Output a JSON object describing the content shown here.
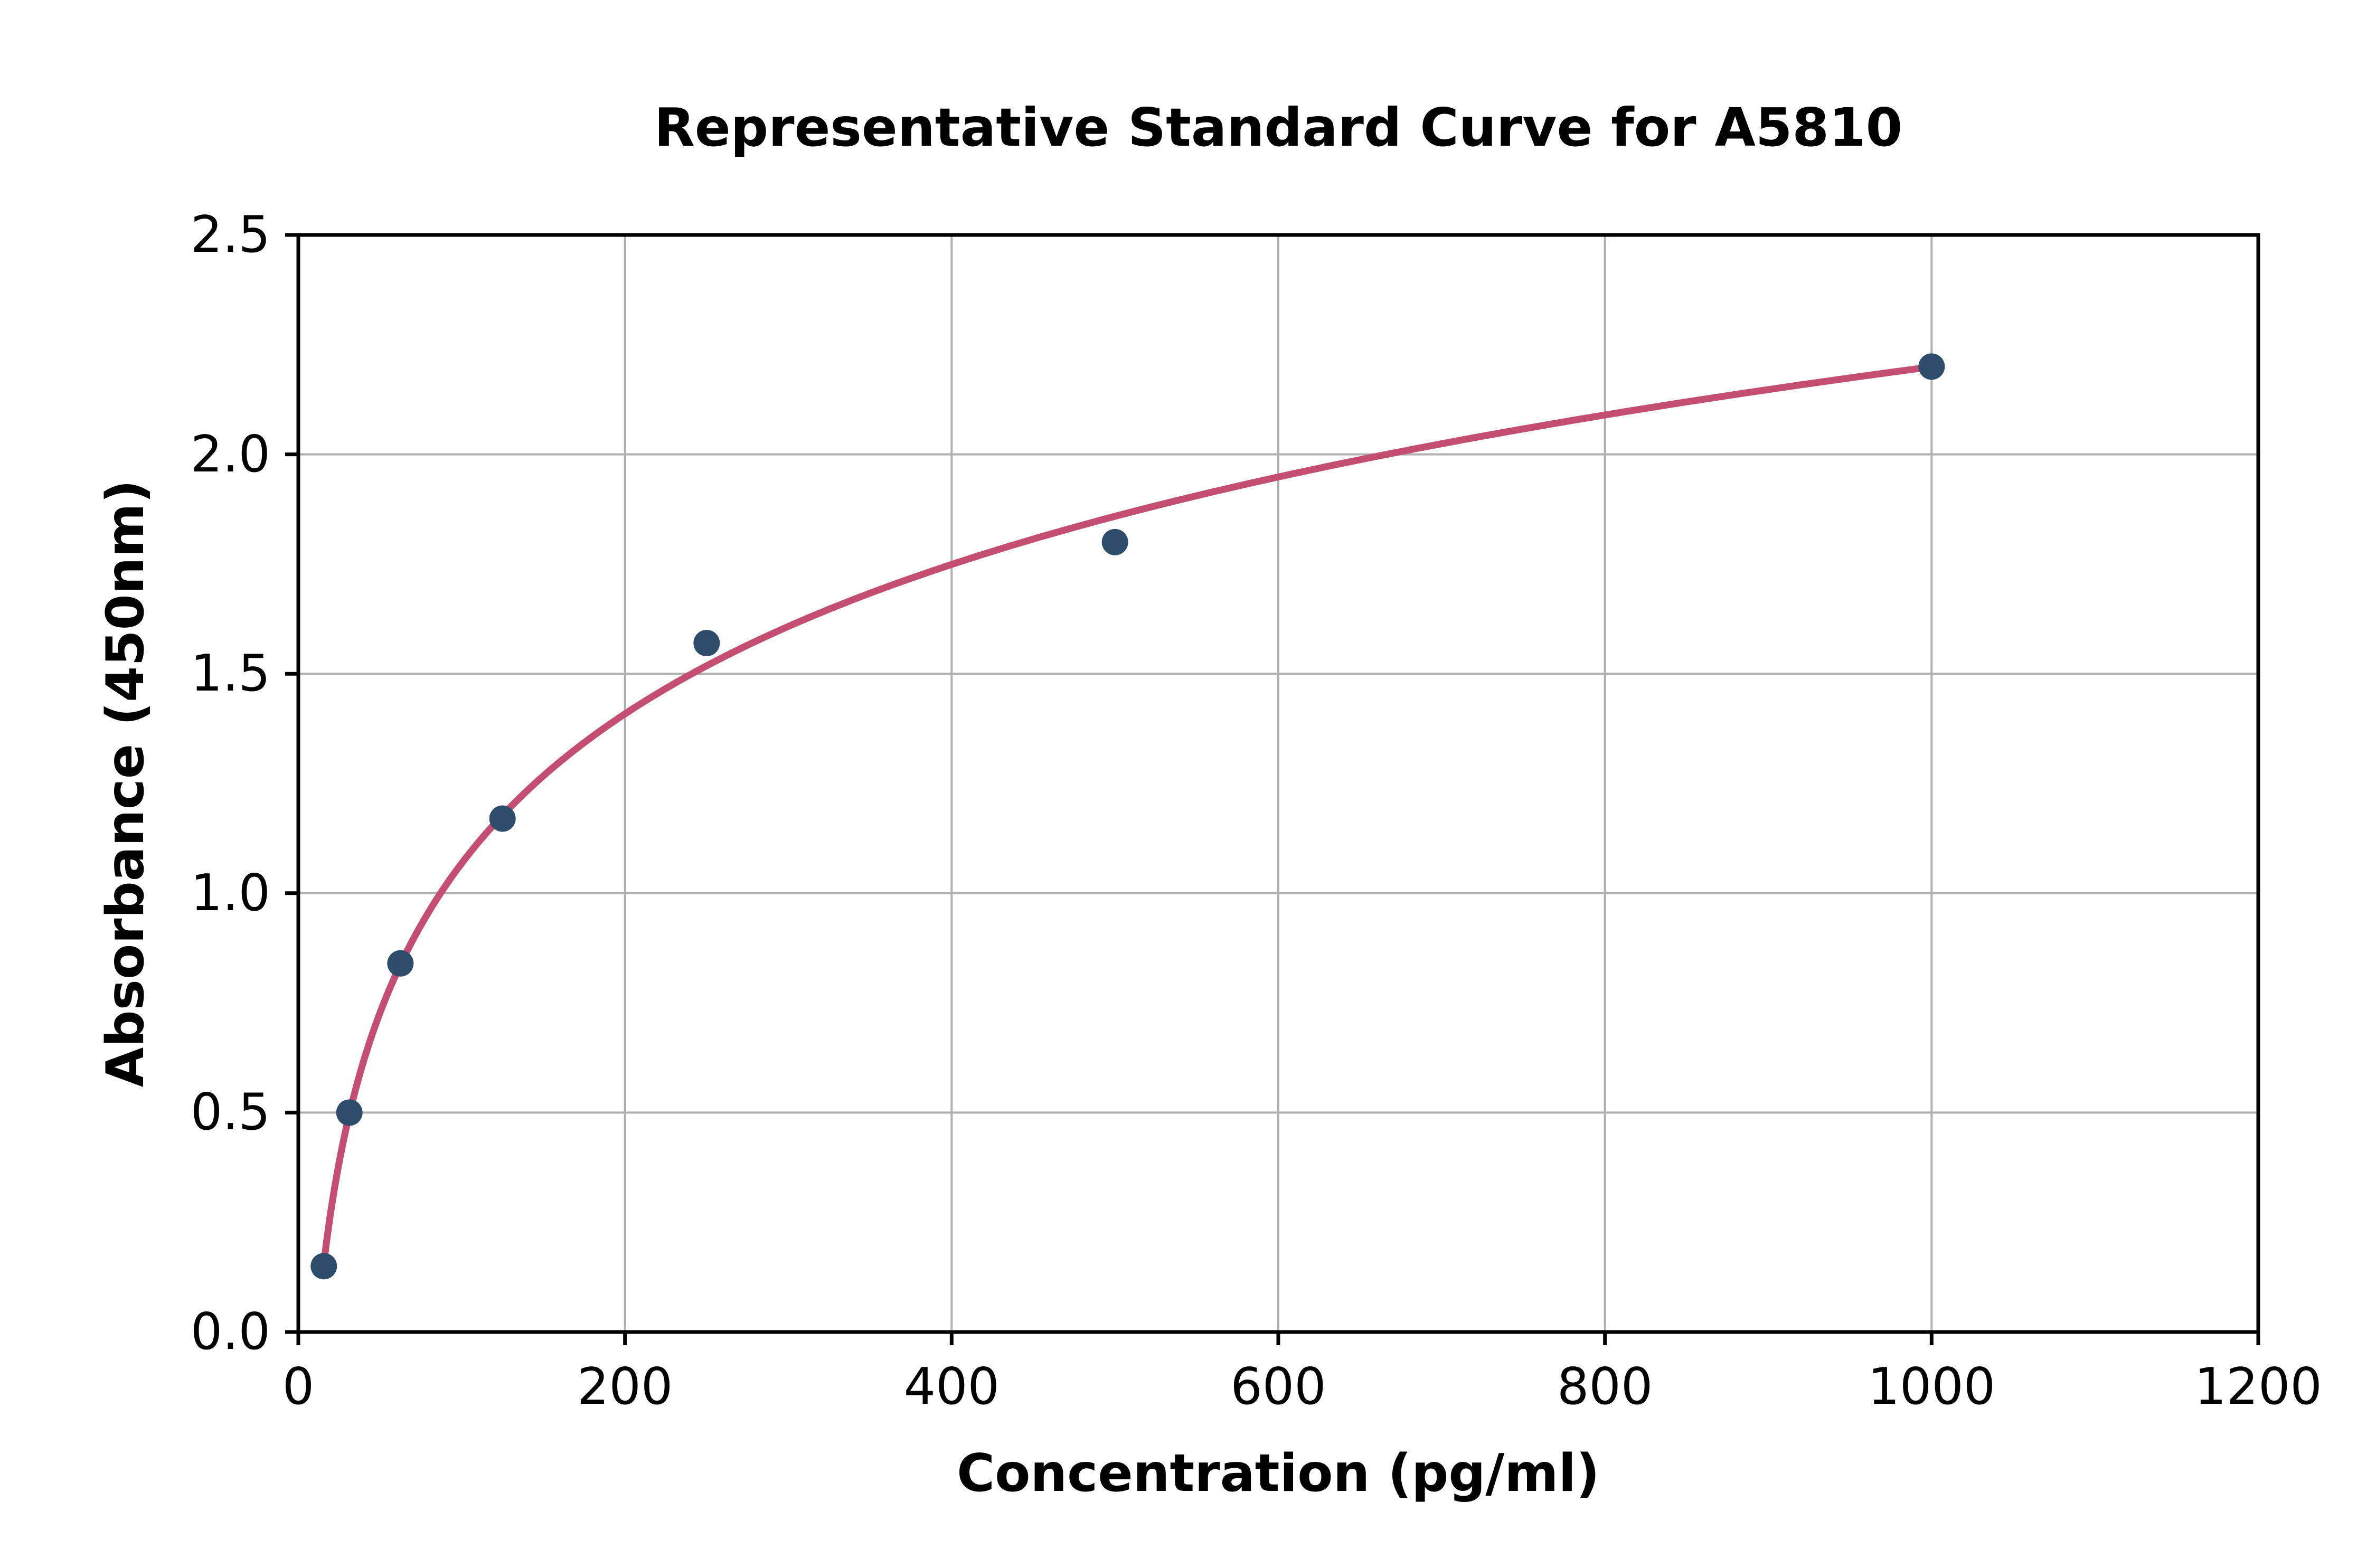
{
  "chart_data": {
    "type": "scatter",
    "title": "Representative Standard Curve for A5810",
    "xlabel": "Concentration (pg/ml)",
    "ylabel": "Absorbance (450nm)",
    "xlim": [
      0,
      1200
    ],
    "ylim": [
      0.0,
      2.5
    ],
    "x_ticks": [
      {
        "value": 0,
        "label": "0"
      },
      {
        "value": 200,
        "label": "200"
      },
      {
        "value": 400,
        "label": "400"
      },
      {
        "value": 600,
        "label": "600"
      },
      {
        "value": 800,
        "label": "800"
      },
      {
        "value": 1000,
        "label": "1000"
      },
      {
        "value": 1200,
        "label": "1200"
      }
    ],
    "y_ticks": [
      {
        "value": 0.0,
        "label": "0.0"
      },
      {
        "value": 0.5,
        "label": "0.5"
      },
      {
        "value": 1.0,
        "label": "1.0"
      },
      {
        "value": 1.5,
        "label": "1.5"
      },
      {
        "value": 2.0,
        "label": "2.0"
      },
      {
        "value": 2.5,
        "label": "2.5"
      }
    ],
    "grid": true,
    "legend": false,
    "series": [
      {
        "name": "standard-points",
        "type": "scatter",
        "points": [
          {
            "x": 15.6,
            "y": 0.15
          },
          {
            "x": 31.25,
            "y": 0.5
          },
          {
            "x": 62.5,
            "y": 0.84
          },
          {
            "x": 125,
            "y": 1.17
          },
          {
            "x": 250,
            "y": 1.57
          },
          {
            "x": 500,
            "y": 1.8
          },
          {
            "x": 1000,
            "y": 2.2
          }
        ]
      },
      {
        "name": "fitted-curve",
        "type": "line",
        "fit_model": "y = a*ln(x) + b",
        "a": 0.4914,
        "b": -1.195,
        "x_start": 15.6,
        "x_end": 1000
      }
    ],
    "colors": {
      "marker": "#2e4d6b",
      "curve": "#c44e72",
      "grid": "#b0b0b0",
      "spine": "#000000",
      "text": "#000000",
      "background": "#ffffff"
    }
  }
}
